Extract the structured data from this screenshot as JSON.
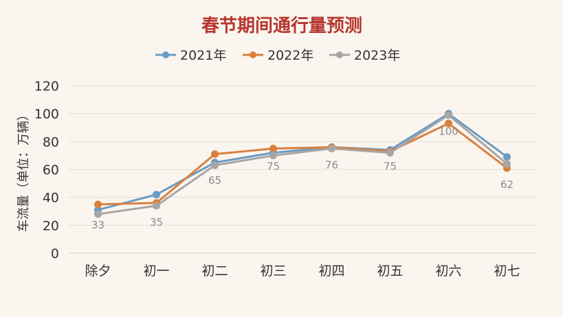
{
  "chart_data": {
    "type": "line",
    "title": "春节期间通行量预测",
    "ylabel": "车流量（单位：万辆）",
    "xlabel": "",
    "categories": [
      "除夕",
      "初一",
      "初二",
      "初三",
      "初四",
      "初五",
      "初六",
      "初七"
    ],
    "ylim": [
      0,
      120
    ],
    "yticks": [
      0,
      20,
      40,
      60,
      80,
      100,
      120
    ],
    "grid": true,
    "legend_position": "top-center",
    "series": [
      {
        "name": "2021年",
        "color": "#6a9bc3",
        "values": [
          31,
          42,
          65,
          72,
          76,
          74,
          100,
          69
        ]
      },
      {
        "name": "2022年",
        "color": "#d9803f",
        "values": [
          35,
          36,
          71,
          75,
          76,
          73,
          93,
          61
        ]
      },
      {
        "name": "2023年",
        "color": "#a6a6a6",
        "values": [
          28,
          34,
          63,
          70,
          75,
          72,
          99,
          64
        ]
      }
    ],
    "data_labels": [
      {
        "category": "除夕",
        "value": 33
      },
      {
        "category": "初一",
        "value": 35
      },
      {
        "category": "初二",
        "value": 65
      },
      {
        "category": "初三",
        "value": 75
      },
      {
        "category": "初四",
        "value": 76
      },
      {
        "category": "初五",
        "value": 75
      },
      {
        "category": "初六",
        "value": 100
      },
      {
        "category": "初七",
        "value": 62
      }
    ]
  }
}
